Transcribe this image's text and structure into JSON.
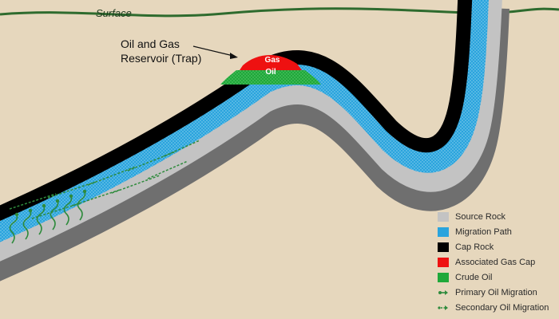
{
  "labels": {
    "surface": "Surface",
    "reservoir_line1": "Oil and Gas",
    "reservoir_line2": "Reservoir (Trap)",
    "gas": "Gas",
    "oil": "Oil"
  },
  "legend": [
    {
      "label": "Source Rock",
      "color": "#c3c3c3",
      "kind": "swatch"
    },
    {
      "label": "Migration Path",
      "color": "#2aa4dd",
      "kind": "swatch"
    },
    {
      "label": "Cap Rock",
      "color": "#000000",
      "kind": "swatch"
    },
    {
      "label": "Associated Gas Cap",
      "color": "#ee1111",
      "kind": "swatch"
    },
    {
      "label": "Crude Oil",
      "color": "#1fa83a",
      "kind": "swatch"
    },
    {
      "label": "Primary Oil Migration",
      "color": "#2e8b3c",
      "kind": "solid-arrow"
    },
    {
      "label": "Secondary Oil Migration",
      "color": "#2e8b3c",
      "kind": "dashed-arrow"
    }
  ],
  "colors": {
    "background": "#e6d7bd",
    "surface_line": "#2e6b2e",
    "source_rock": "#c3c3c3",
    "source_rock_dark": "#6f6f6f",
    "migration_path": "#2aa4dd",
    "cap_rock": "#000000",
    "gas": "#ee1111",
    "oil": "#1fa83a",
    "migration_arrows": "#2e8b3c"
  }
}
